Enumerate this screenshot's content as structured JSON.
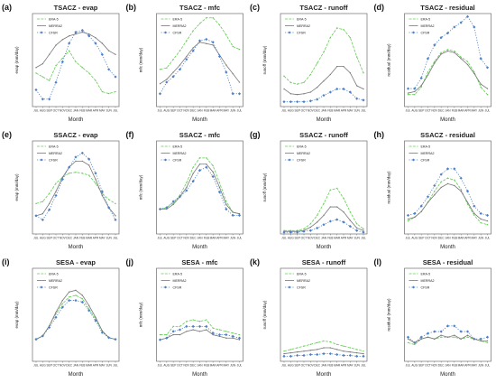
{
  "chart_data": [
    {
      "type": "line",
      "label": "(a)",
      "title": "TSACZ - evap",
      "xlabel": "Month",
      "ylabel": "evap (mm/day)",
      "x": [
        "JUL",
        "AUG",
        "SEP",
        "OCT",
        "NOV",
        "DEC",
        "JAN",
        "FEB",
        "MAR",
        "APR",
        "MAY",
        "JUN",
        "JUL"
      ],
      "ylim": [
        2.9,
        5.4
      ],
      "series": [
        {
          "name": "ERA-5",
          "values": [
            3.8,
            3.7,
            3.6,
            4.0,
            4.2,
            4.4,
            4.1,
            3.95,
            3.8,
            3.6,
            3.3,
            3.25,
            3.3
          ]
        },
        {
          "name": "MERRA2",
          "values": [
            3.95,
            4.05,
            4.3,
            4.55,
            4.7,
            4.8,
            4.85,
            4.9,
            4.85,
            4.75,
            4.6,
            4.4,
            4.3
          ]
        },
        {
          "name": "CFSR",
          "values": [
            3.35,
            3.1,
            3.1,
            3.55,
            4.1,
            4.6,
            4.9,
            4.95,
            4.8,
            4.6,
            4.3,
            3.9,
            3.7
          ]
        }
      ]
    },
    {
      "type": "line",
      "label": "(b)",
      "title": "TSACZ - mfc",
      "xlabel": "Month",
      "ylabel": "mfc (mm/day)",
      "x": [
        "JUL",
        "AUG",
        "SEP",
        "OCT",
        "NOV",
        "DEC",
        "JAN",
        "FEB",
        "MAR",
        "APR",
        "MAY",
        "JUN",
        "JUL"
      ],
      "ylim": [
        0,
        6.5
      ],
      "series": [
        {
          "name": "ERA-5",
          "values": [
            2.6,
            2.7,
            3.3,
            3.9,
            4.6,
            5.3,
            5.8,
            6.2,
            6.2,
            5.7,
            5.0,
            4.2,
            4.0
          ]
        },
        {
          "name": "MERRA2",
          "values": [
            1.6,
            1.9,
            2.4,
            2.9,
            3.5,
            4.1,
            4.5,
            4.4,
            4.3,
            3.6,
            2.9,
            2.3,
            1.7
          ]
        },
        {
          "name": "CFSR",
          "values": [
            0.9,
            1.7,
            2.1,
            2.6,
            3.3,
            3.9,
            4.6,
            4.7,
            4.5,
            3.5,
            2.4,
            0.9,
            0.9
          ]
        }
      ]
    },
    {
      "type": "line",
      "label": "(c)",
      "title": "TSACZ - runoff",
      "xlabel": "Month",
      "ylabel": "runoff (mm/day)",
      "x": [
        "JUL",
        "AUG",
        "SEP",
        "OCT",
        "NOV",
        "DEC",
        "JAN",
        "FEB",
        "MAR",
        "APR",
        "MAY",
        "JUN",
        "JUL"
      ],
      "ylim": [
        0,
        5.8
      ],
      "series": [
        {
          "name": "ERA-5",
          "values": [
            1.9,
            1.5,
            1.4,
            1.5,
            2.0,
            2.7,
            3.4,
            4.3,
            4.9,
            4.8,
            4.3,
            3.1,
            2.1
          ]
        },
        {
          "name": "MERRA2",
          "values": [
            1.1,
            0.8,
            0.75,
            0.8,
            0.9,
            1.2,
            1.6,
            2.0,
            2.5,
            2.5,
            2.1,
            1.3,
            1.1
          ]
        },
        {
          "name": "CFSR",
          "values": [
            0.3,
            0.3,
            0.3,
            0.3,
            0.35,
            0.45,
            0.7,
            0.9,
            1.1,
            1.1,
            0.9,
            0.5,
            0.4
          ]
        }
      ]
    },
    {
      "type": "line",
      "label": "(d)",
      "title": "TSACZ - residual",
      "xlabel": "Month",
      "ylabel": "residual (mm/day)",
      "x": [
        "JUL",
        "AUG",
        "SEP",
        "OCT",
        "NOV",
        "DEC",
        "JAN",
        "FEB",
        "MAR",
        "APR",
        "MAY",
        "JUN",
        "JUL"
      ],
      "ylim": [
        0,
        6.2
      ],
      "series": [
        {
          "name": "ERA-5",
          "values": [
            0.8,
            0.8,
            1.3,
            2.3,
            3.0,
            3.6,
            3.8,
            3.7,
            3.3,
            3.0,
            2.3,
            1.3,
            0.8
          ]
        },
        {
          "name": "MERRA2",
          "values": [
            0.9,
            1.0,
            1.4,
            2.1,
            2.9,
            3.5,
            3.7,
            3.6,
            3.2,
            2.8,
            2.2,
            1.5,
            1.2
          ]
        },
        {
          "name": "CFSR",
          "values": [
            1.2,
            1.2,
            1.9,
            3.2,
            4.1,
            4.6,
            4.9,
            5.3,
            5.6,
            6.0,
            5.3,
            3.2,
            2.6
          ]
        }
      ]
    },
    {
      "type": "line",
      "label": "(e)",
      "title": "SSACZ - evap",
      "xlabel": "Month",
      "ylabel": "evap (mm/day)",
      "x": [
        "JUL",
        "AUG",
        "SEP",
        "OCT",
        "NOV",
        "DEC",
        "JAN",
        "FEB",
        "MAR",
        "APR",
        "MAY",
        "JUN",
        "JUL"
      ],
      "ylim": [
        1.2,
        5.8
      ],
      "series": [
        {
          "name": "ERA-5",
          "values": [
            2.7,
            2.8,
            3.2,
            3.7,
            4.0,
            4.2,
            4.25,
            4.2,
            4.1,
            3.7,
            3.2,
            2.9,
            2.7
          ]
        },
        {
          "name": "MERRA2",
          "values": [
            2.1,
            2.2,
            2.7,
            3.3,
            4.0,
            4.5,
            4.8,
            4.8,
            4.6,
            3.9,
            3.1,
            2.5,
            2.1
          ]
        },
        {
          "name": "CFSR",
          "values": [
            2.1,
            1.9,
            2.4,
            3.1,
            3.9,
            4.5,
            5.0,
            5.2,
            4.9,
            4.2,
            3.3,
            2.5,
            1.9
          ]
        }
      ]
    },
    {
      "type": "line",
      "label": "(f)",
      "title": "SSACZ - mfc",
      "xlabel": "Month",
      "ylabel": "mfc (mm/day)",
      "x": [
        "JUL",
        "AUG",
        "SEP",
        "OCT",
        "NOV",
        "DEC",
        "JAN",
        "FEB",
        "MAR",
        "APR",
        "MAY",
        "JUN",
        "JUL"
      ],
      "ylim": [
        -1,
        5
      ],
      "series": [
        {
          "name": "ERA-5",
          "values": [
            0.6,
            0.7,
            1.0,
            1.5,
            2.3,
            3.3,
            3.9,
            3.9,
            3.4,
            2.3,
            1.1,
            0.4,
            0.3
          ]
        },
        {
          "name": "MERRA2",
          "values": [
            0.6,
            0.6,
            0.9,
            1.4,
            2.0,
            2.9,
            3.5,
            3.5,
            3.0,
            2.0,
            0.9,
            0.4,
            0.3
          ]
        },
        {
          "name": "CFSR",
          "values": [
            0.6,
            0.7,
            1.1,
            1.4,
            1.8,
            2.4,
            3.1,
            3.3,
            2.7,
            1.7,
            0.6,
            0.2,
            0.2
          ]
        }
      ]
    },
    {
      "type": "line",
      "label": "(g)",
      "title": "SSACZ - runoff",
      "xlabel": "Month",
      "ylabel": "runoff (mm/day)",
      "x": [
        "JUL",
        "AUG",
        "SEP",
        "OCT",
        "NOV",
        "DEC",
        "JAN",
        "FEB",
        "MAR",
        "APR",
        "MAY",
        "JUN",
        "JUL"
      ],
      "ylim": [
        0,
        5.5
      ],
      "series": [
        {
          "name": "ERA-5",
          "values": [
            0.2,
            0.2,
            0.2,
            0.3,
            0.6,
            1.1,
            1.8,
            2.6,
            2.7,
            2.1,
            1.3,
            0.6,
            0.3
          ]
        },
        {
          "name": "MERRA2",
          "values": [
            0.15,
            0.15,
            0.15,
            0.2,
            0.4,
            0.7,
            1.1,
            1.6,
            1.6,
            1.3,
            0.8,
            0.35,
            0.2
          ]
        },
        {
          "name": "CFSR",
          "values": [
            0.1,
            0.1,
            0.1,
            0.15,
            0.2,
            0.35,
            0.55,
            0.75,
            0.85,
            0.7,
            0.45,
            0.2,
            0.1
          ]
        }
      ]
    },
    {
      "type": "line",
      "label": "(h)",
      "title": "SSACZ - residual",
      "xlabel": "Month",
      "ylabel": "residual (mm/day)",
      "x": [
        "JUL",
        "AUG",
        "SEP",
        "OCT",
        "NOV",
        "DEC",
        "JAN",
        "FEB",
        "MAR",
        "APR",
        "MAY",
        "JUN",
        "JUL"
      ],
      "ylim": [
        0,
        5
      ],
      "series": [
        {
          "name": "ERA-5",
          "values": [
            0.7,
            0.9,
            1.2,
            1.7,
            2.3,
            2.8,
            3.0,
            2.9,
            2.4,
            1.6,
            1.0,
            0.6,
            0.5
          ]
        },
        {
          "name": "MERRA2",
          "values": [
            0.8,
            0.9,
            1.2,
            1.7,
            2.1,
            2.5,
            2.7,
            2.6,
            2.3,
            1.7,
            1.1,
            0.8,
            0.7
          ]
        },
        {
          "name": "CFSR",
          "values": [
            1.0,
            1.1,
            1.5,
            2.0,
            2.6,
            3.2,
            3.5,
            3.5,
            3.0,
            2.3,
            1.5,
            1.1,
            1.0
          ]
        }
      ]
    },
    {
      "type": "line",
      "label": "(i)",
      "title": "SESA - evap",
      "xlabel": "Month",
      "ylabel": "evap (mm/day)",
      "x": [
        "JUL",
        "AUG",
        "SEP",
        "OCT",
        "NOV",
        "DEC",
        "JAN",
        "FEB",
        "MAR",
        "APR",
        "MAY",
        "JUN",
        "JUL"
      ],
      "ylim": [
        0,
        5.5
      ],
      "series": [
        {
          "name": "ERA-5",
          "values": [
            1.3,
            1.5,
            2.1,
            2.8,
            3.4,
            3.8,
            3.9,
            3.7,
            3.1,
            2.5,
            1.8,
            1.4,
            1.3
          ]
        },
        {
          "name": "MERRA2",
          "values": [
            1.3,
            1.5,
            2.1,
            2.9,
            3.6,
            4.1,
            4.2,
            3.9,
            3.3,
            2.6,
            1.8,
            1.4,
            1.3
          ]
        },
        {
          "name": "CFSR",
          "values": [
            1.3,
            1.5,
            2.0,
            2.6,
            3.2,
            3.6,
            3.6,
            3.5,
            3.0,
            2.4,
            1.7,
            1.4,
            1.3
          ]
        }
      ]
    },
    {
      "type": "line",
      "label": "(j)",
      "title": "SESA - mfc",
      "xlabel": "Month",
      "ylabel": "mfc (mm/day)",
      "x": [
        "JUL",
        "AUG",
        "SEP",
        "OCT",
        "NOV",
        "DEC",
        "JAN",
        "FEB",
        "MAR",
        "APR",
        "MAY",
        "JUN",
        "JUL"
      ],
      "ylim": [
        -0.6,
        5
      ],
      "series": [
        {
          "name": "ERA-5",
          "values": [
            1.0,
            1.0,
            1.5,
            1.5,
            1.8,
            1.9,
            1.8,
            1.9,
            1.4,
            1.3,
            1.2,
            1.1,
            1.0
          ]
        },
        {
          "name": "MERRA2",
          "values": [
            0.7,
            0.8,
            1.0,
            1.0,
            1.2,
            1.3,
            1.2,
            1.3,
            1.0,
            0.9,
            0.8,
            0.8,
            0.7
          ]
        },
        {
          "name": "CFSR",
          "values": [
            0.7,
            0.8,
            1.2,
            1.3,
            1.5,
            1.5,
            1.5,
            1.5,
            1.1,
            1.0,
            1.0,
            0.9,
            0.8
          ]
        }
      ]
    },
    {
      "type": "line",
      "label": "(k)",
      "title": "SESA - runoff",
      "xlabel": "Month",
      "ylabel": "runoff (mm/day)",
      "x": [
        "JUL",
        "AUG",
        "SEP",
        "OCT",
        "NOV",
        "DEC",
        "JAN",
        "FEB",
        "MAR",
        "APR",
        "MAY",
        "JUN",
        "JUL"
      ],
      "ylim": [
        0,
        5.5
      ],
      "series": [
        {
          "name": "ERA-5",
          "values": [
            0.6,
            0.7,
            0.8,
            0.9,
            1.0,
            1.1,
            1.2,
            1.15,
            1.0,
            0.9,
            0.8,
            0.7,
            0.6
          ]
        },
        {
          "name": "MERRA2",
          "values": [
            0.45,
            0.5,
            0.55,
            0.6,
            0.65,
            0.7,
            0.8,
            0.8,
            0.7,
            0.6,
            0.55,
            0.5,
            0.45
          ]
        },
        {
          "name": "CFSR",
          "values": [
            0.3,
            0.3,
            0.35,
            0.35,
            0.4,
            0.4,
            0.45,
            0.45,
            0.4,
            0.35,
            0.35,
            0.3,
            0.3
          ]
        }
      ]
    },
    {
      "type": "line",
      "label": "(l)",
      "title": "SESA - residual",
      "xlabel": "Month",
      "ylabel": "residual (mm/day)",
      "x": [
        "JUL",
        "AUG",
        "SEP",
        "OCT",
        "NOV",
        "DEC",
        "JAN",
        "FEB",
        "MAR",
        "APR",
        "MAY",
        "JUN",
        "JUL"
      ],
      "ylim": [
        0,
        5
      ],
      "series": [
        {
          "name": "ERA-5",
          "values": [
            1.0,
            0.9,
            1.2,
            1.3,
            1.2,
            1.3,
            1.3,
            1.3,
            1.2,
            1.3,
            1.2,
            1.1,
            1.0
          ]
        },
        {
          "name": "MERRA2",
          "values": [
            1.2,
            1.0,
            1.2,
            1.3,
            1.2,
            1.4,
            1.3,
            1.4,
            1.2,
            1.4,
            1.2,
            1.1,
            1.1
          ]
        },
        {
          "name": "CFSR",
          "values": [
            1.3,
            1.0,
            1.3,
            1.5,
            1.6,
            1.6,
            1.9,
            1.9,
            1.6,
            1.6,
            1.2,
            1.2,
            1.3
          ]
        }
      ]
    }
  ],
  "colors": {
    "ERA-5": "#66cc55",
    "MERRA2": "#777777",
    "CFSR": "#4d7fc7"
  }
}
